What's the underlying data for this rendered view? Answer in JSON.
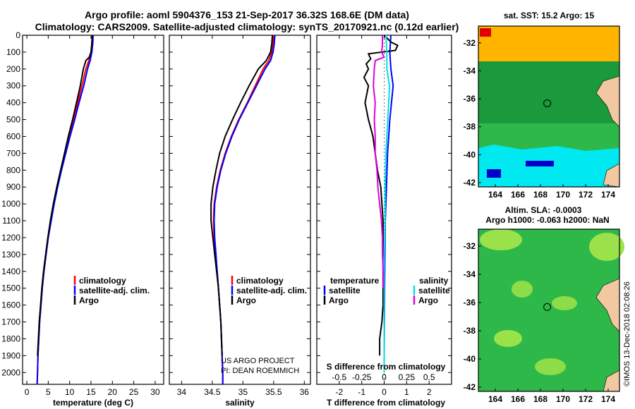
{
  "title_line1": "Argo profile: aoml 5904376_153 21-Sep-2017 36.32S 168.6E (DM data)",
  "title_line2": "Climatology: CARS2009. Satellite-adjusted climatology: synTS_20170921.nc (0.12d earlier)",
  "colors": {
    "climatology": "#ff0000",
    "satellite": "#0000ff",
    "argo": "#000000",
    "sal_satellite": "#00e0e0",
    "sal_argo": "#e000e0",
    "ocean_dark_green": "#1a9a3a",
    "ocean_green": "#2eb84a",
    "land": "#f2c8a0"
  },
  "chart_data": [
    {
      "type": "line",
      "id": "temperature-profile",
      "xlabel": "temperature (deg C)",
      "ylabel": "",
      "xlim": [
        -1,
        32
      ],
      "ylim": [
        2070,
        0
      ],
      "x_ticks": [
        0,
        5,
        10,
        15,
        20,
        25,
        30
      ],
      "y_ticks": [
        0,
        100,
        200,
        300,
        400,
        500,
        600,
        700,
        800,
        900,
        1000,
        1100,
        1200,
        1300,
        1400,
        1500,
        1600,
        1700,
        1800,
        1900,
        2000
      ],
      "legend": [
        "climatology",
        "satellite-adj. clim.",
        "Argo"
      ],
      "series": [
        {
          "name": "climatology",
          "depth": [
            0,
            50,
            100,
            150,
            200,
            300,
            400,
            500,
            600,
            700,
            800,
            900,
            1000,
            1100,
            1200,
            1300,
            1400,
            1500,
            1600,
            1700,
            1800,
            1900,
            2000,
            2070
          ],
          "values": [
            15.3,
            15.2,
            15.0,
            14.5,
            13.8,
            12.9,
            11.9,
            10.9,
            9.9,
            8.9,
            8.0,
            7.1,
            6.3,
            5.6,
            5.0,
            4.5,
            4.0,
            3.6,
            3.3,
            3.0,
            2.8,
            2.6,
            2.5,
            2.4
          ]
        },
        {
          "name": "satellite-adj. clim.",
          "depth": [
            0,
            50,
            100,
            150,
            200,
            300,
            400,
            500,
            600,
            700,
            800,
            900,
            1000,
            1100,
            1200,
            1300,
            1400,
            1500,
            1600,
            1700,
            1800,
            1900,
            2000,
            2070
          ],
          "values": [
            15.5,
            15.4,
            15.2,
            14.8,
            14.2,
            13.3,
            12.2,
            11.2,
            10.1,
            9.1,
            8.1,
            7.2,
            6.4,
            5.7,
            5.0,
            4.5,
            4.0,
            3.6,
            3.3,
            3.0,
            2.8,
            2.6,
            2.5,
            2.4
          ]
        },
        {
          "name": "Argo",
          "depth": [
            0,
            50,
            100,
            130,
            150,
            200,
            300,
            400,
            500,
            600,
            700,
            800,
            900,
            1000,
            1100,
            1200,
            1300,
            1400,
            1500,
            1600,
            1700,
            1800,
            1900
          ],
          "values": [
            15.3,
            15.2,
            15.0,
            14.6,
            13.8,
            13.2,
            12.5,
            11.6,
            10.7,
            9.7,
            8.8,
            7.9,
            7.0,
            6.2,
            5.5,
            4.9,
            4.4,
            3.9,
            3.5,
            3.2,
            2.9,
            2.7,
            2.5
          ]
        }
      ]
    },
    {
      "type": "line",
      "id": "salinity-profile",
      "xlabel": "salinity",
      "xlim": [
        33.8,
        36.1
      ],
      "ylim": [
        2070,
        0
      ],
      "x_ticks": [
        34,
        34.5,
        35,
        35.5,
        36
      ],
      "x_tick_labels": [
        "34",
        "34.5",
        "35",
        "35.5",
        "36"
      ],
      "legend": [
        "climatology",
        "satellite-adj. clim.",
        "Argo"
      ],
      "series": [
        {
          "name": "climatology",
          "depth": [
            0,
            50,
            100,
            150,
            200,
            300,
            400,
            500,
            600,
            700,
            800,
            900,
            1000,
            1100,
            1200,
            1300,
            1400,
            1500,
            1600,
            1700,
            1800,
            1900,
            2000,
            2070
          ],
          "values": [
            35.5,
            35.49,
            35.47,
            35.42,
            35.33,
            35.2,
            35.07,
            34.93,
            34.81,
            34.71,
            34.63,
            34.57,
            34.53,
            34.52,
            34.53,
            34.55,
            34.58,
            34.6,
            34.62,
            34.64,
            34.65,
            34.66,
            34.67,
            34.67
          ]
        },
        {
          "name": "satellite-adj. clim.",
          "depth": [
            0,
            50,
            100,
            150,
            200,
            300,
            400,
            500,
            600,
            700,
            800,
            900,
            1000,
            1100,
            1200,
            1300,
            1400,
            1500,
            1600,
            1700,
            1800,
            1900,
            2000,
            2070
          ],
          "values": [
            35.52,
            35.51,
            35.49,
            35.45,
            35.36,
            35.22,
            35.08,
            34.94,
            34.82,
            34.72,
            34.64,
            34.58,
            34.54,
            34.53,
            34.54,
            34.56,
            34.58,
            34.6,
            34.62,
            34.64,
            34.65,
            34.66,
            34.67,
            34.67
          ]
        },
        {
          "name": "Argo",
          "depth": [
            0,
            50,
            100,
            150,
            200,
            300,
            400,
            500,
            600,
            700,
            800,
            900,
            1000,
            1100,
            1200,
            1300,
            1400,
            1500,
            1600,
            1700,
            1800,
            1900
          ],
          "values": [
            35.48,
            35.47,
            35.45,
            35.38,
            35.25,
            35.1,
            34.96,
            34.83,
            34.71,
            34.62,
            34.56,
            34.51,
            34.48,
            34.48,
            34.51,
            34.54,
            34.57,
            34.6,
            34.62,
            34.64,
            34.65,
            34.66
          ]
        }
      ],
      "annotations": [
        "US ARGO PROJECT",
        "PI: DEAN ROEMMICH"
      ]
    },
    {
      "type": "line",
      "id": "difference-profile",
      "xlabel": "T difference from climatology",
      "xlabel_top": "S difference from climatology",
      "xlim": [
        -3,
        3
      ],
      "ylim": [
        2070,
        0
      ],
      "x_ticks": [
        -2,
        -1,
        0,
        1,
        2
      ],
      "x_tick_labels": [
        "-2",
        "-1",
        "0",
        "1",
        "2"
      ],
      "s_ticks": [
        -0.5,
        -0.25,
        0,
        0.25,
        0.5
      ],
      "s_tick_labels": [
        "-0.5",
        "-0.25",
        "0",
        "0.25",
        "0.5"
      ],
      "legend_headers": [
        "temperature",
        "salinity"
      ],
      "legend": [
        "satellite",
        "Argo",
        "satellite",
        "Argo"
      ],
      "series": [
        {
          "name": "T satellite",
          "depth": [
            0,
            100,
            200,
            300,
            500,
            700,
            900,
            1100,
            1300,
            1500,
            1700,
            1900,
            2000
          ],
          "values": [
            0.3,
            0.25,
            0.3,
            0.4,
            0.25,
            0.15,
            0.1,
            0.05,
            0.03,
            0.02,
            0.01,
            0.0,
            0.0
          ]
        },
        {
          "name": "T Argo",
          "depth": [
            0,
            40,
            60,
            90,
            110,
            140,
            170,
            200,
            250,
            300,
            400,
            500,
            600,
            700,
            800,
            900,
            1000,
            1100,
            1200,
            1300,
            1400,
            1500,
            1600,
            1700,
            1800,
            1900
          ],
          "values": [
            0.0,
            0.3,
            0.6,
            0.5,
            -0.7,
            -0.6,
            -0.8,
            -0.7,
            -0.9,
            -0.7,
            -0.85,
            -0.7,
            -0.5,
            -0.4,
            -0.3,
            -0.15,
            -0.1,
            -0.05,
            -0.05,
            -0.05,
            -0.05,
            -0.05,
            -0.05,
            -0.1,
            -0.2,
            -0.2
          ]
        },
        {
          "name": "S satellite",
          "depth": [
            0,
            100,
            200,
            300,
            400,
            500,
            700,
            900,
            1100,
            1300,
            1500,
            1700,
            1900,
            2000
          ],
          "values": [
            0.02,
            0.03,
            0.03,
            0.06,
            0.05,
            0.04,
            0.02,
            0.01,
            0.01,
            0.0,
            0.0,
            0.0,
            0.0,
            0.0
          ]
        },
        {
          "name": "S Argo",
          "depth": [
            0,
            60,
            100,
            130,
            150,
            200,
            300,
            400,
            500,
            600,
            700,
            800,
            900,
            1000,
            1100,
            1200,
            1300,
            1400,
            1500
          ],
          "values": [
            -0.02,
            -0.02,
            -0.03,
            0.0,
            -0.1,
            -0.11,
            -0.12,
            -0.1,
            -0.11,
            -0.1,
            -0.1,
            -0.08,
            -0.07,
            -0.05,
            -0.03,
            -0.02,
            -0.02,
            -0.01,
            -0.01
          ]
        }
      ]
    },
    {
      "type": "heatmap",
      "id": "sst-map",
      "title": "sat. SST: 15.2 Argo: 15",
      "xlim": [
        162.5,
        175
      ],
      "ylim": [
        -42.3,
        -30.8
      ],
      "x_ticks": [
        164,
        166,
        168,
        170,
        172,
        174
      ],
      "y_ticks": [
        -32,
        -34,
        -36,
        -38,
        -40,
        -42
      ],
      "marker": {
        "lon": 168.6,
        "lat": -36.32
      }
    },
    {
      "type": "heatmap",
      "id": "sla-map",
      "title": "Altim. SLA: -0.0003",
      "subtitle": "Argo h1000: -0.063 h2000: NaN",
      "xlim": [
        162.5,
        175
      ],
      "ylim": [
        -42.3,
        -30.8
      ],
      "x_ticks": [
        164,
        166,
        168,
        170,
        172,
        174
      ],
      "y_ticks": [
        -32,
        -34,
        -36,
        -38,
        -40,
        -42
      ],
      "marker": {
        "lon": 168.6,
        "lat": -36.32
      }
    }
  ],
  "credit": "©IMOS 13-Dec-2018 02:08:26"
}
